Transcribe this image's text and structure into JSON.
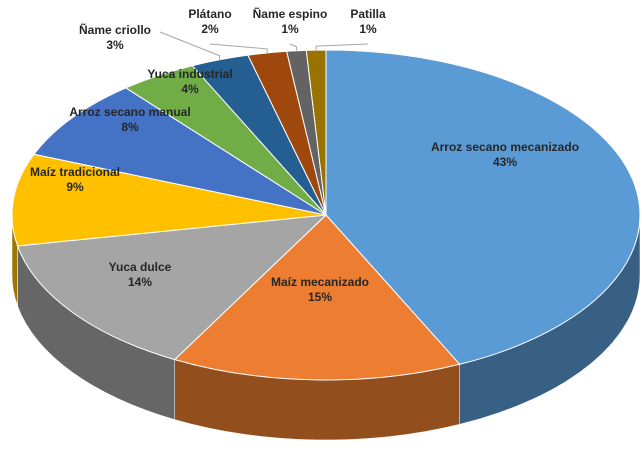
{
  "chart_data": {
    "type": "pie",
    "categories": [
      "Arroz secano mecanizado",
      "Maíz mecanizado",
      "Yuca dulce",
      "Maíz tradicional",
      "Arroz secano manual",
      "Yuca industrial",
      "Ñame criollo",
      "Plátano",
      "Ñame espino",
      "Patilla"
    ],
    "values": [
      43,
      15,
      14,
      9,
      8,
      4,
      3,
      2,
      1,
      1
    ],
    "value_labels": [
      "43%",
      "15%",
      "14%",
      "9%",
      "8%",
      "4%",
      "3%",
      "2%",
      "1%",
      "1%"
    ],
    "colors": [
      "#5b9bd5",
      "#ed7d31",
      "#a5a5a5",
      "#ffc000",
      "#4472c4",
      "#70ad47",
      "#255e91",
      "#9e480e",
      "#636363",
      "#997300"
    ]
  }
}
